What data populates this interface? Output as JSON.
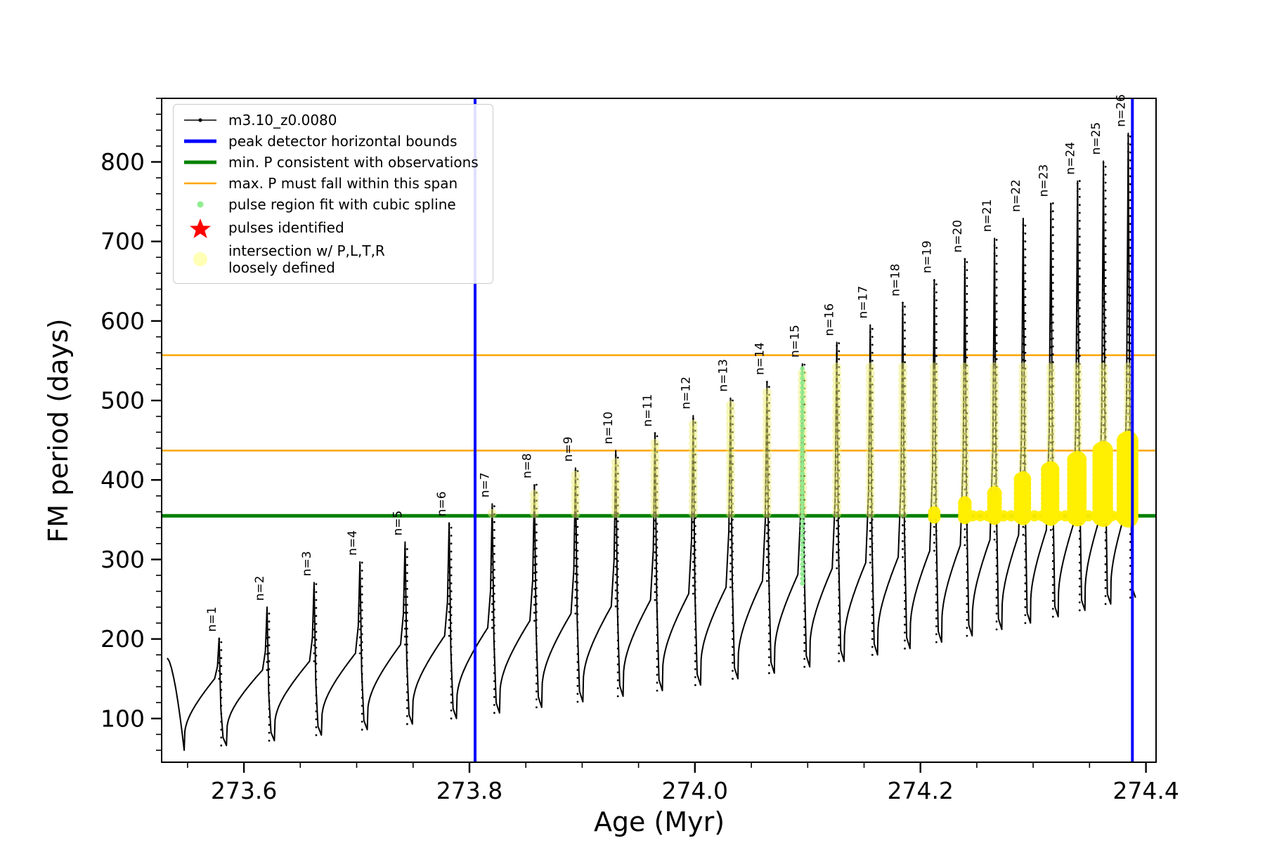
{
  "axes": {
    "xlabel": "Age (Myr)",
    "ylabel": "FM period (days)",
    "xlim": [
      273.527,
      274.409
    ],
    "ylim": [
      45,
      880
    ],
    "x_ticks": {
      "values": [
        273.6,
        273.8,
        274.0,
        274.2,
        274.4
      ],
      "labels": [
        "273.6",
        "273.8",
        "274.0",
        "274.2",
        "274.4"
      ]
    },
    "x_minor_step": 0.05,
    "y_ticks": {
      "values": [
        100,
        200,
        300,
        400,
        500,
        600,
        700,
        800
      ],
      "labels": [
        "100",
        "200",
        "300",
        "400",
        "500",
        "600",
        "700",
        "800"
      ]
    },
    "y_minor_step": 20
  },
  "legend": {
    "items": [
      {
        "symbol": "line-dot",
        "color": "#000000",
        "label": "m3.10_z0.0080"
      },
      {
        "symbol": "thick-line",
        "color": "#0000ff",
        "label": "peak detector horizontal bounds"
      },
      {
        "symbol": "thick-line",
        "color": "#008000",
        "label": "min. P consistent with observations"
      },
      {
        "symbol": "line",
        "color": "#ffa500",
        "label": "max. P must fall within this span"
      },
      {
        "symbol": "dot",
        "color": "#90ee90",
        "label": "pulse region fit with cubic spline"
      },
      {
        "symbol": "star",
        "color": "#ff0000",
        "label": "pulses identified"
      },
      {
        "symbol": "big-dot",
        "color": "#ffffa8",
        "label": "intersection w/ P,L,T,R",
        "label2": "loosely defined"
      }
    ]
  },
  "chart_data": {
    "type": "line",
    "series_name": "m3.10_z0.0080",
    "title": "",
    "xlabel": "Age (Myr)",
    "ylabel": "FM period (days)",
    "xlim": [
      273.527,
      274.409
    ],
    "ylim": [
      45,
      880
    ],
    "line_color": "#000000",
    "start": {
      "x": 273.532,
      "y": 176,
      "min_x": 273.547,
      "min_y": 60
    },
    "peaks": [
      {
        "n": 1,
        "label": "n=1",
        "x": 273.578,
        "peak": 201,
        "base": 150,
        "min_after": 66
      },
      {
        "n": 2,
        "label": "n=2",
        "x": 273.6205,
        "peak": 240,
        "base": 161,
        "min_after": 72
      },
      {
        "n": 3,
        "label": "n=3",
        "x": 273.6622,
        "peak": 271,
        "base": 172,
        "min_after": 79
      },
      {
        "n": 4,
        "label": "n=4",
        "x": 273.7029,
        "peak": 297,
        "base": 182,
        "min_after": 86
      },
      {
        "n": 5,
        "label": "n=5",
        "x": 273.7429,
        "peak": 322,
        "base": 193,
        "min_after": 93
      },
      {
        "n": 6,
        "label": "n=6",
        "x": 273.782,
        "peak": 346,
        "base": 204,
        "min_after": 100
      },
      {
        "n": 7,
        "label": "n=7",
        "x": 273.8202,
        "peak": 370,
        "base": 214,
        "min_after": 107
      },
      {
        "n": 8,
        "label": "n=8",
        "x": 273.8576,
        "peak": 394,
        "base": 223,
        "min_after": 114
      },
      {
        "n": 9,
        "label": "n=9",
        "x": 273.8941,
        "peak": 415,
        "base": 232,
        "min_after": 121
      },
      {
        "n": 10,
        "label": "n=10",
        "x": 273.9298,
        "peak": 437,
        "base": 241,
        "min_after": 128
      },
      {
        "n": 11,
        "label": "n=11",
        "x": 273.9646,
        "peak": 459,
        "base": 249,
        "min_after": 135
      },
      {
        "n": 12,
        "label": "n=12",
        "x": 273.9985,
        "peak": 481,
        "base": 257,
        "min_after": 142
      },
      {
        "n": 13,
        "label": "n=13",
        "x": 274.0316,
        "peak": 503,
        "base": 265,
        "min_after": 150
      },
      {
        "n": 14,
        "label": "n=14",
        "x": 274.0639,
        "peak": 524,
        "base": 273,
        "min_after": 157
      },
      {
        "n": 15,
        "label": "n=15",
        "x": 274.0953,
        "peak": 546,
        "base": 281,
        "min_after": 165
      },
      {
        "n": 16,
        "label": "n=16",
        "x": 274.1258,
        "peak": 573,
        "base": 289,
        "min_after": 172
      },
      {
        "n": 17,
        "label": "n=17",
        "x": 274.1555,
        "peak": 595,
        "base": 296,
        "min_after": 180
      },
      {
        "n": 18,
        "label": "n=18",
        "x": 274.1843,
        "peak": 623,
        "base": 303,
        "min_after": 188
      },
      {
        "n": 19,
        "label": "n=19",
        "x": 274.2123,
        "peak": 652,
        "base": 311,
        "min_after": 196
      },
      {
        "n": 20,
        "label": "n=20",
        "x": 274.2394,
        "peak": 678,
        "base": 318,
        "min_after": 204
      },
      {
        "n": 21,
        "label": "n=21",
        "x": 274.2657,
        "peak": 704,
        "base": 325,
        "min_after": 212
      },
      {
        "n": 22,
        "label": "n=22",
        "x": 274.2911,
        "peak": 729,
        "base": 331,
        "min_after": 220
      },
      {
        "n": 23,
        "label": "n=23",
        "x": 274.3157,
        "peak": 748,
        "base": 337,
        "min_after": 228
      },
      {
        "n": 24,
        "label": "n=24",
        "x": 274.3394,
        "peak": 776,
        "base": 343,
        "min_after": 236
      },
      {
        "n": 25,
        "label": "n=25",
        "x": 274.3623,
        "peak": 801,
        "base": 349,
        "min_after": 244
      },
      {
        "n": 26,
        "label": "n=26",
        "x": 274.3843,
        "peak": 836,
        "base": 353,
        "min_after": 252
      }
    ],
    "vlines": {
      "color": "#0000ff",
      "values": [
        273.805,
        274.388
      ],
      "label": "peak detector horizontal bounds"
    },
    "hline_green": {
      "color": "#008000",
      "value": 355,
      "label": "min. P consistent with observations"
    },
    "hlines_orange": {
      "color": "#ffa500",
      "values": [
        437,
        557
      ],
      "label": "max. P must fall within this span"
    },
    "spline_region": {
      "x": 274.0953,
      "y_from": 270,
      "y_to": 544,
      "color": "#90ee90",
      "label": "pulse region fit with cubic spline"
    },
    "yellow_strings": {
      "color": "#f0f07a",
      "y_from": 358,
      "y_cap": 548,
      "first_peak": 7
    },
    "yellow_clusters": {
      "color": "#ffee00",
      "base_y": 353,
      "tops": [
        361,
        374,
        388,
        402,
        415,
        428,
        441,
        453
      ],
      "first_peak": 19,
      "label": "intersection w/ P,L,T,R loosely defined"
    }
  }
}
